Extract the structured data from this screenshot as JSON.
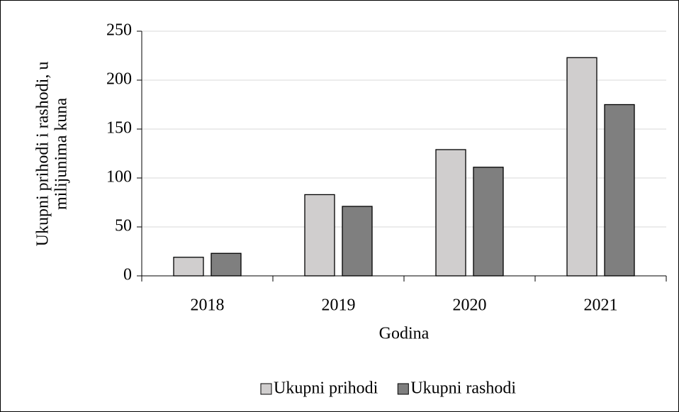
{
  "chart_data": {
    "type": "bar",
    "categories": [
      "2018",
      "2019",
      "2020",
      "2021"
    ],
    "series": [
      {
        "name": "Ukupni prihodi",
        "color": "#d0cece",
        "values": [
          19,
          83,
          129,
          223
        ]
      },
      {
        "name": "Ukupni rashodi",
        "color": "#7f7f7f",
        "values": [
          23,
          71,
          111,
          175
        ]
      }
    ],
    "ylim": [
      0,
      250
    ],
    "yticks": [
      0,
      50,
      100,
      150,
      200,
      250
    ],
    "grid": true,
    "x_label": "Godina",
    "y_label": [
      "Ukupni prihodi i rashodi, u",
      "milijunima kuna"
    ],
    "legend": "bottom"
  }
}
